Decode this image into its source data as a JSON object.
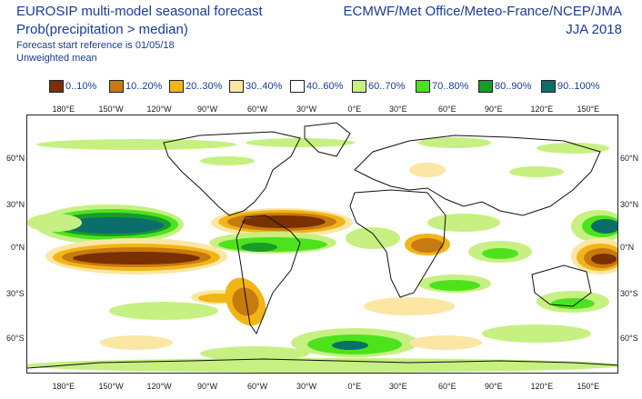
{
  "header": {
    "title_line1": "EUROSIP multi-model seasonal forecast",
    "title_line2": "Prob(precipitation > median)",
    "title_line3": "Forecast start reference is 01/05/18",
    "title_line4": "Unweighted mean",
    "agencies": "ECMWF/Met Office/Meteo-France/NCEP/JMA",
    "season": "JJA 2018"
  },
  "legend": [
    {
      "label": "0..10%",
      "color": "#7a3000"
    },
    {
      "label": "10..20%",
      "color": "#c77a10"
    },
    {
      "label": "20..30%",
      "color": "#f2b417"
    },
    {
      "label": "30..40%",
      "color": "#fbe6a4"
    },
    {
      "label": "40..60%",
      "color": "#ffffff"
    },
    {
      "label": "60..70%",
      "color": "#c6f081"
    },
    {
      "label": "70..80%",
      "color": "#4ce31d"
    },
    {
      "label": "80..90%",
      "color": "#189a2c"
    },
    {
      "label": "90..100%",
      "color": "#0b6e6a"
    }
  ],
  "axes": {
    "top_labels": [
      "180°E",
      "150°W",
      "120°W",
      "90°W",
      "60°W",
      "30°W",
      "0°E",
      "30°E",
      "60°E",
      "90°E",
      "120°E",
      "150°E"
    ],
    "bottom_labels": [
      "180°E",
      "150°W",
      "120°W",
      "90°W",
      "60°W",
      "30°W",
      "0°E",
      "30°E",
      "60°E",
      "90°E",
      "120°E",
      "150°E"
    ],
    "left_labels": [
      "60°N",
      "30°N",
      "0°N",
      "30°S",
      "60°S"
    ],
    "right_labels": [
      "60°N",
      "30°N",
      "0°N",
      "30°S",
      "60°S"
    ]
  }
}
